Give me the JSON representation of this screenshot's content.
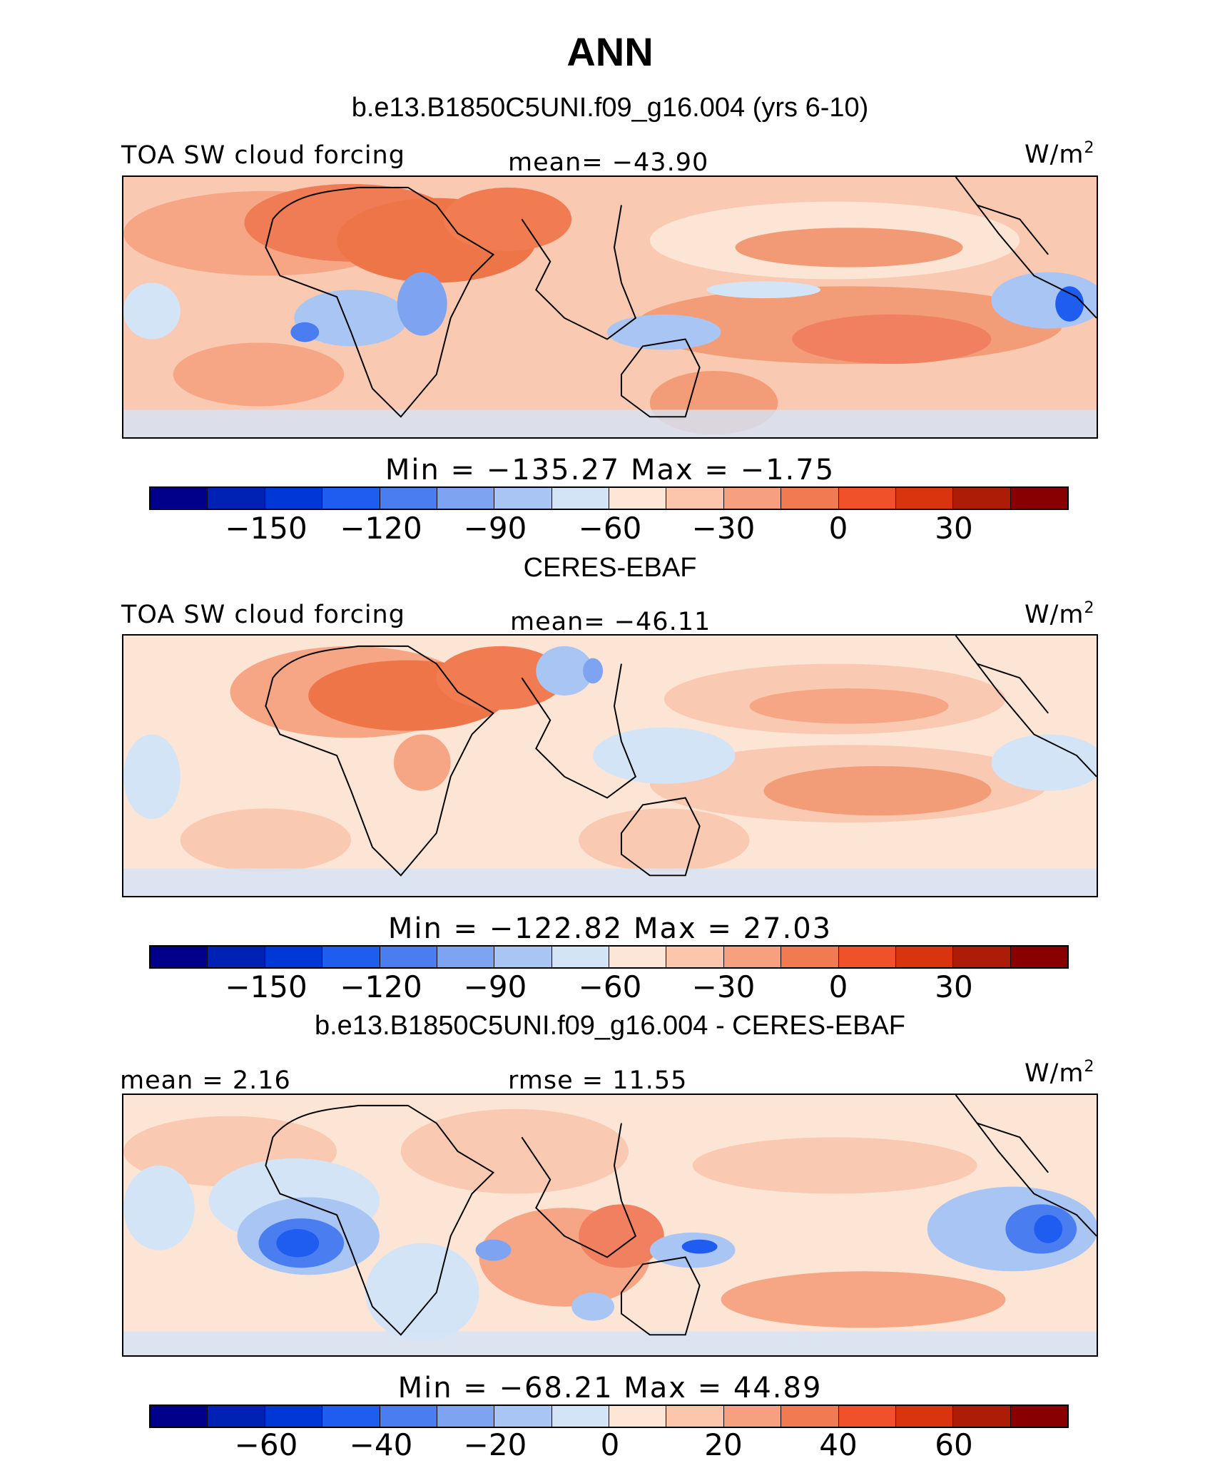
{
  "title": "ANN",
  "panels": [
    {
      "subtitle": "b.e13.B1850C5UNI.f09_g16.004 (yrs 6-10)",
      "left_label": "TOA SW cloud forcing",
      "center_label": "mean= −43.90",
      "unit_base": "W/m",
      "unit_exp": "2",
      "minmax": "Min = −135.27 Max = −1.75",
      "colorbar_ticks": [
        "−150",
        "−120",
        "−90",
        "−60",
        "−30",
        "0",
        "30"
      ]
    },
    {
      "subtitle": "CERES-EBAF",
      "left_label": "TOA SW cloud forcing",
      "center_label": "mean= −46.11",
      "unit_base": "W/m",
      "unit_exp": "2",
      "minmax": "Min = −122.82 Max = 27.03",
      "colorbar_ticks": [
        "−150",
        "−120",
        "−90",
        "−60",
        "−30",
        "0",
        "30"
      ]
    },
    {
      "subtitle": "b.e13.B1850C5UNI.f09_g16.004 - CERES-EBAF",
      "left_label": "mean = 2.16",
      "center_label": "rmse = 11.55",
      "unit_base": "W/m",
      "unit_exp": "2",
      "minmax": "Min = −68.21 Max = 44.89",
      "colorbar_ticks": [
        "−60",
        "−40",
        "−20",
        "0",
        "20",
        "40",
        "60"
      ]
    }
  ],
  "colorbar_colors": [
    "#00008b",
    "#0022b4",
    "#0038d8",
    "#1f5cf0",
    "#4a7ef0",
    "#7ea3f0",
    "#a9c5f3",
    "#d4e4f7",
    "#fde6d6",
    "#fbc6ab",
    "#f6a07f",
    "#f27a51",
    "#f0502a",
    "#d8340e",
    "#ad1c06",
    "#880000"
  ]
}
